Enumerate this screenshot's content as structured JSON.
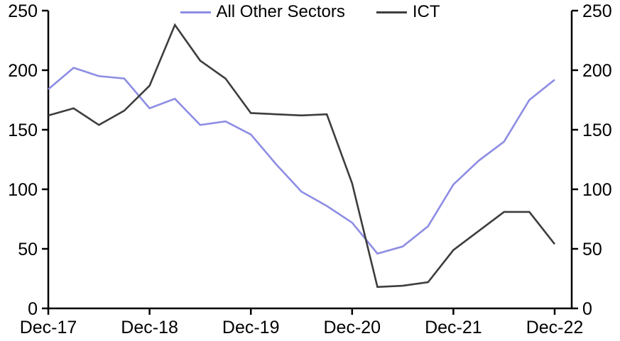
{
  "chart_data": {
    "type": "line",
    "title": "",
    "xlabel": "",
    "ylabel": "",
    "ylim": [
      0,
      250
    ],
    "y_ticks": [
      0,
      50,
      100,
      150,
      200,
      250
    ],
    "x_tick_labels": [
      "Dec-17",
      "Dec-18",
      "Dec-19",
      "Dec-20",
      "Dec-21",
      "Dec-22"
    ],
    "x_tick_indices": [
      0,
      4,
      8,
      12,
      16,
      20
    ],
    "x": [
      "Dec-17",
      "Mar-18",
      "Jun-18",
      "Sep-18",
      "Dec-18",
      "Mar-19",
      "Jun-19",
      "Sep-19",
      "Dec-19",
      "Mar-20",
      "Jun-20",
      "Sep-20",
      "Dec-20",
      "Mar-21",
      "Jun-21",
      "Sep-21",
      "Dec-21",
      "Mar-22",
      "Jun-22",
      "Sep-22",
      "Dec-22"
    ],
    "series": [
      {
        "name": "All Other Sectors",
        "color": "#8d8de4",
        "values": [
          184,
          202,
          195,
          193,
          168,
          176,
          154,
          157,
          146,
          121,
          98,
          86,
          72,
          46,
          52,
          69,
          104,
          124,
          140,
          175,
          192
        ]
      },
      {
        "name": "ICT",
        "color": "#3d3d3d",
        "values": [
          162,
          168,
          154,
          166,
          187,
          238,
          208,
          193,
          164,
          163,
          162,
          163,
          105,
          18,
          19,
          22,
          49,
          65,
          81,
          81,
          54
        ]
      }
    ],
    "grid": false,
    "legend_position": "top-center",
    "axes_shown": {
      "left": true,
      "right": true,
      "bottom": true,
      "top": false
    },
    "axis_color": "#000000"
  }
}
